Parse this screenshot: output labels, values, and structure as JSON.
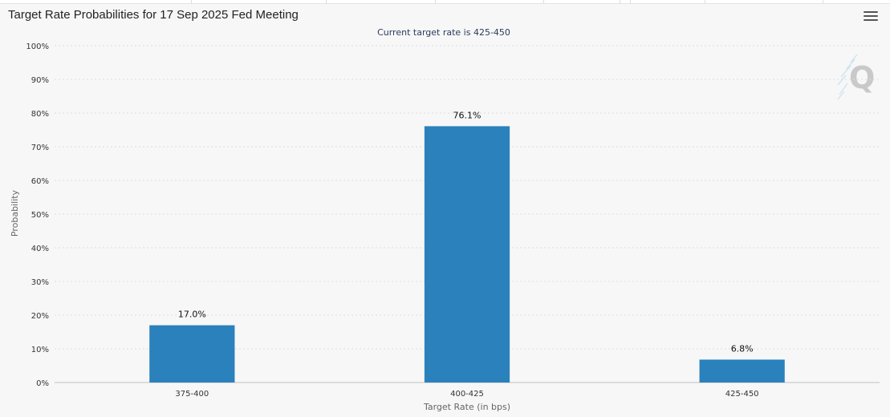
{
  "title": "Target Rate Probabilities for 17 Sep 2025 Fed Meeting",
  "chart_data": {
    "type": "bar",
    "subtitle": "Current target rate is 425-450",
    "categories": [
      "375-400",
      "400-425",
      "425-450"
    ],
    "values": [
      17.0,
      76.1,
      6.8
    ],
    "data_labels": [
      "17.0%",
      "76.1%",
      "6.8%"
    ],
    "xlabel": "Target Rate (in bps)",
    "ylabel": "Probability",
    "ylim": [
      0,
      100
    ],
    "yticks": [
      "0%",
      "10%",
      "20%",
      "30%",
      "40%",
      "50%",
      "60%",
      "70%",
      "80%",
      "90%",
      "100%"
    ],
    "grid": true,
    "legend": "none",
    "bar_color": "#2a81bc"
  },
  "watermark_letter": "Q",
  "icons": {
    "menu": "hamburger-menu-icon",
    "watermark": "q-watermark-icon"
  }
}
